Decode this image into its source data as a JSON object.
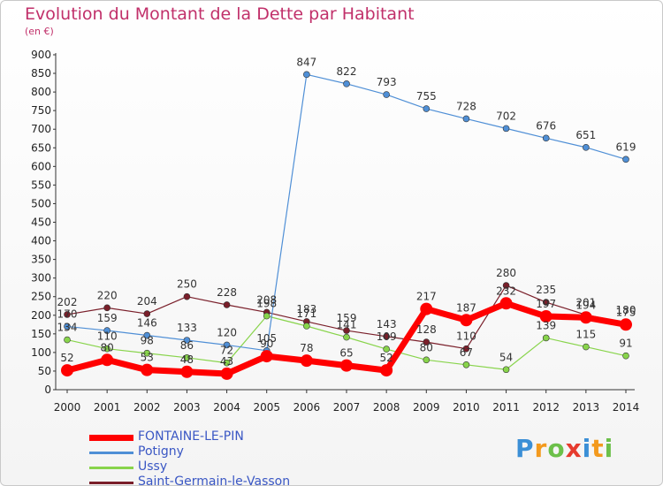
{
  "title": "Evolution du Montant de la Dette par Habitant",
  "subtitle": "(en €)",
  "logo": "Proxiti",
  "chart_data": {
    "type": "line",
    "x": [
      "2000",
      "2001",
      "2002",
      "2003",
      "2004",
      "2005",
      "2006",
      "2007",
      "2008",
      "2009",
      "2010",
      "2011",
      "2012",
      "2013",
      "2014"
    ],
    "ylim": [
      0,
      900
    ],
    "yticks": [
      0,
      50,
      100,
      150,
      200,
      250,
      300,
      350,
      400,
      450,
      500,
      550,
      600,
      650,
      700,
      750,
      800,
      850,
      900
    ],
    "grid": false,
    "legend_position": "bottom",
    "series": [
      {
        "name": "FONTAINE-LE-PIN",
        "color": "#ff0000",
        "values": [
          52,
          80,
          53,
          48,
          43,
          90,
          78,
          65,
          52,
          217,
          187,
          232,
          197,
          194,
          175
        ]
      },
      {
        "name": "Potigny",
        "color": "#4f8fd6",
        "values": [
          170,
          159,
          146,
          133,
          120,
          105,
          847,
          822,
          793,
          755,
          728,
          702,
          676,
          651,
          619
        ]
      },
      {
        "name": "Ussy",
        "color": "#88d44b",
        "values": [
          134,
          110,
          98,
          86,
          72,
          198,
          171,
          141,
          109,
          80,
          67,
          54,
          139,
          115,
          91
        ]
      },
      {
        "name": "Saint-Germain-le-Vasson",
        "color": "#7a1f2a",
        "values": [
          202,
          220,
          204,
          250,
          228,
          208,
          183,
          159,
          143,
          128,
          110,
          280,
          235,
          201,
          180
        ]
      }
    ]
  }
}
